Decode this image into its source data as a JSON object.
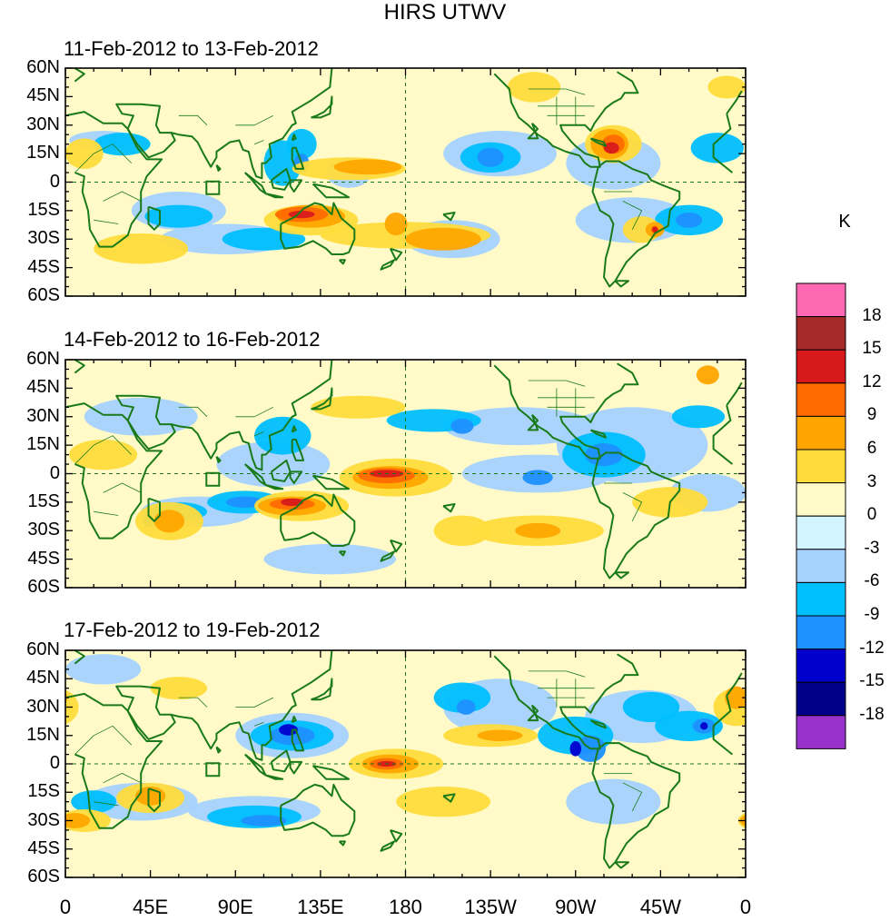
{
  "figure": {
    "title": "HIRS UTWV",
    "panels": [
      {
        "id": "p1",
        "title": "11-Feb-2012 to 13-Feb-2012"
      },
      {
        "id": "p2",
        "title": "14-Feb-2012 to 16-Feb-2012"
      },
      {
        "id": "p3",
        "title": "17-Feb-2012 to 19-Feb-2012"
      }
    ],
    "lat_labels": [
      "60N",
      "45N",
      "30N",
      "15N",
      "0",
      "15S",
      "30S",
      "45S",
      "60S"
    ],
    "lon_labels": [
      "0",
      "45E",
      "90E",
      "135E",
      "180",
      "135W",
      "90W",
      "45W",
      "0"
    ]
  },
  "colorbar": {
    "unit": "K",
    "levels": [
      "18",
      "15",
      "12",
      "9",
      "6",
      "3",
      "0",
      "-3",
      "-6",
      "-9",
      "-12",
      "-15",
      "-18"
    ],
    "colors": [
      "#ff69b4",
      "#a52a2a",
      "#d7191c",
      "#ff6a00",
      "#ffa500",
      "#ffdc3c",
      "#fffac8",
      "#d2f5ff",
      "#a5d2ff",
      "#00bfff",
      "#1e90ff",
      "#0000cd",
      "#00008b",
      "#9932cc"
    ]
  },
  "colors": {
    "coastline": "#1a7a1a",
    "axis": "#000000",
    "equator_dash": "#1a7a1a",
    "background_field": "#fffac8"
  }
}
